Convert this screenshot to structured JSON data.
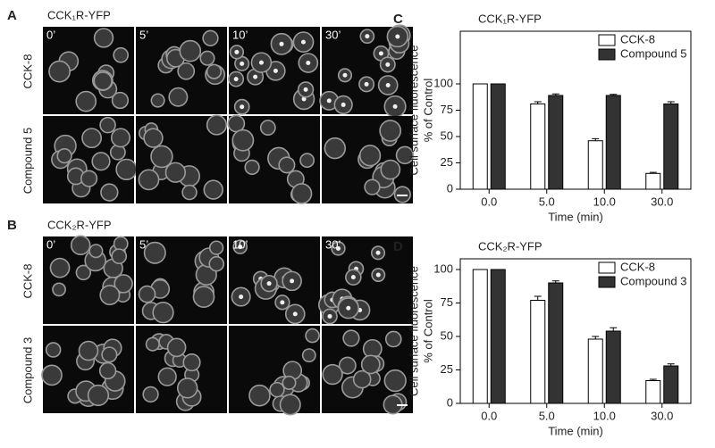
{
  "figure": {
    "panels": [
      {
        "label": "A",
        "title": "CCK₁R-YFP",
        "times": [
          "0’",
          "5’",
          "10’",
          "30’"
        ],
        "rows": [
          "CCK-8",
          "Compound 5"
        ]
      },
      {
        "label": "B",
        "title": "CCK₂R-YFP",
        "times": [
          "0’",
          "5’",
          "10’",
          "30’"
        ],
        "rows": [
          "CCK-8",
          "Compound 3"
        ]
      }
    ]
  },
  "chart_data": [
    {
      "type": "bar",
      "panel_label": "C",
      "title": "CCK₁R-YFP",
      "categories": [
        "0.0",
        "5.0",
        "10.0",
        "30.0"
      ],
      "series": [
        {
          "name": "CCK-8",
          "color": "#ffffff",
          "values": [
            100,
            81,
            46,
            15
          ],
          "errors": [
            0,
            2,
            2,
            1
          ]
        },
        {
          "name": "Compound 5",
          "color": "#333333",
          "values": [
            100,
            89,
            89,
            81
          ],
          "errors": [
            0,
            1.5,
            1,
            2
          ]
        }
      ],
      "ylim": [
        0,
        150
      ],
      "yticks": [
        0,
        25,
        50,
        75,
        100
      ],
      "xlabel": "Time (min)",
      "ylabel": [
        "Cell surface fluorescence",
        "% of Control"
      ],
      "legend": "upper right"
    },
    {
      "type": "bar",
      "panel_label": "D",
      "title": "CCK₂R-YFP",
      "categories": [
        "0.0",
        "5.0",
        "10.0",
        "30.0"
      ],
      "series": [
        {
          "name": "CCK-8",
          "color": "#ffffff",
          "values": [
            100,
            77,
            48,
            17
          ],
          "errors": [
            0,
            3,
            2,
            1
          ]
        },
        {
          "name": "Compound 3",
          "color": "#333333",
          "values": [
            100,
            90,
            54,
            28
          ],
          "errors": [
            0,
            1.5,
            2.5,
            1.5
          ]
        }
      ],
      "ylim": [
        0,
        108
      ],
      "yticks": [
        0,
        25,
        50,
        75,
        100
      ],
      "xlabel": "Time (min)",
      "ylabel": [
        "Cell surface fluorescence",
        "% of Control"
      ],
      "legend": "upper right"
    }
  ]
}
